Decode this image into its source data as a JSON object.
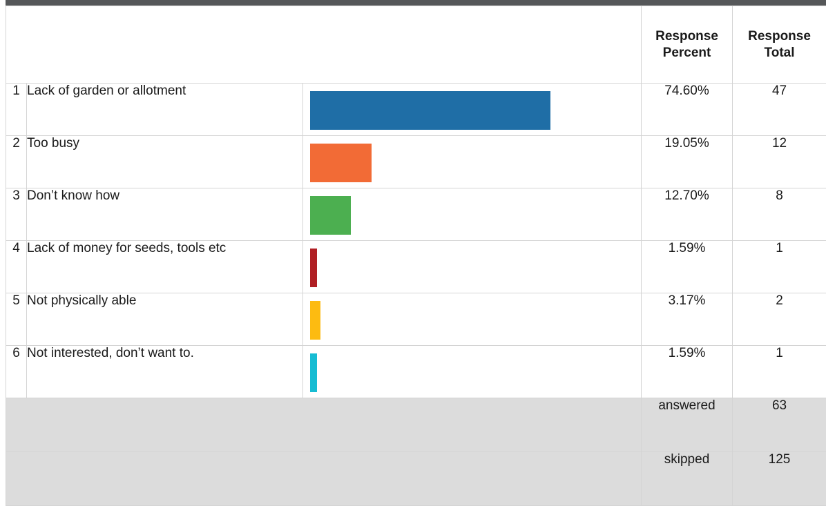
{
  "header": {
    "col_percent": [
      "Response",
      "Percent"
    ],
    "col_total": [
      "Response",
      "Total"
    ]
  },
  "chart_data": {
    "type": "table",
    "rows": [
      {
        "num": "1",
        "label": "Lack of garden or allotment",
        "percent": "74.60%",
        "total": "47",
        "value": 74.6,
        "color": "#1f6ea6"
      },
      {
        "num": "2",
        "label": "Too busy",
        "percent": "19.05%",
        "total": "12",
        "value": 19.05,
        "color": "#f26b36"
      },
      {
        "num": "3",
        "label": "Don’t know how",
        "percent": "12.70%",
        "total": "8",
        "value": 12.7,
        "color": "#4caf50"
      },
      {
        "num": "4",
        "label": "Lack of money for seeds, tools etc",
        "percent": "1.59%",
        "total": "1",
        "value": 1.59,
        "color": "#b01f24"
      },
      {
        "num": "5",
        "label": "Not physically able",
        "percent": "3.17%",
        "total": "2",
        "value": 3.17,
        "color": "#fdbb11"
      },
      {
        "num": "6",
        "label": "Not interested, don’t want to.",
        "percent": "1.59%",
        "total": "1",
        "value": 1.59,
        "color": "#17bcd3"
      }
    ]
  },
  "summary": {
    "answered_label": "answered",
    "answered_value": "63",
    "skipped_label": "skipped",
    "skipped_value": "125"
  }
}
